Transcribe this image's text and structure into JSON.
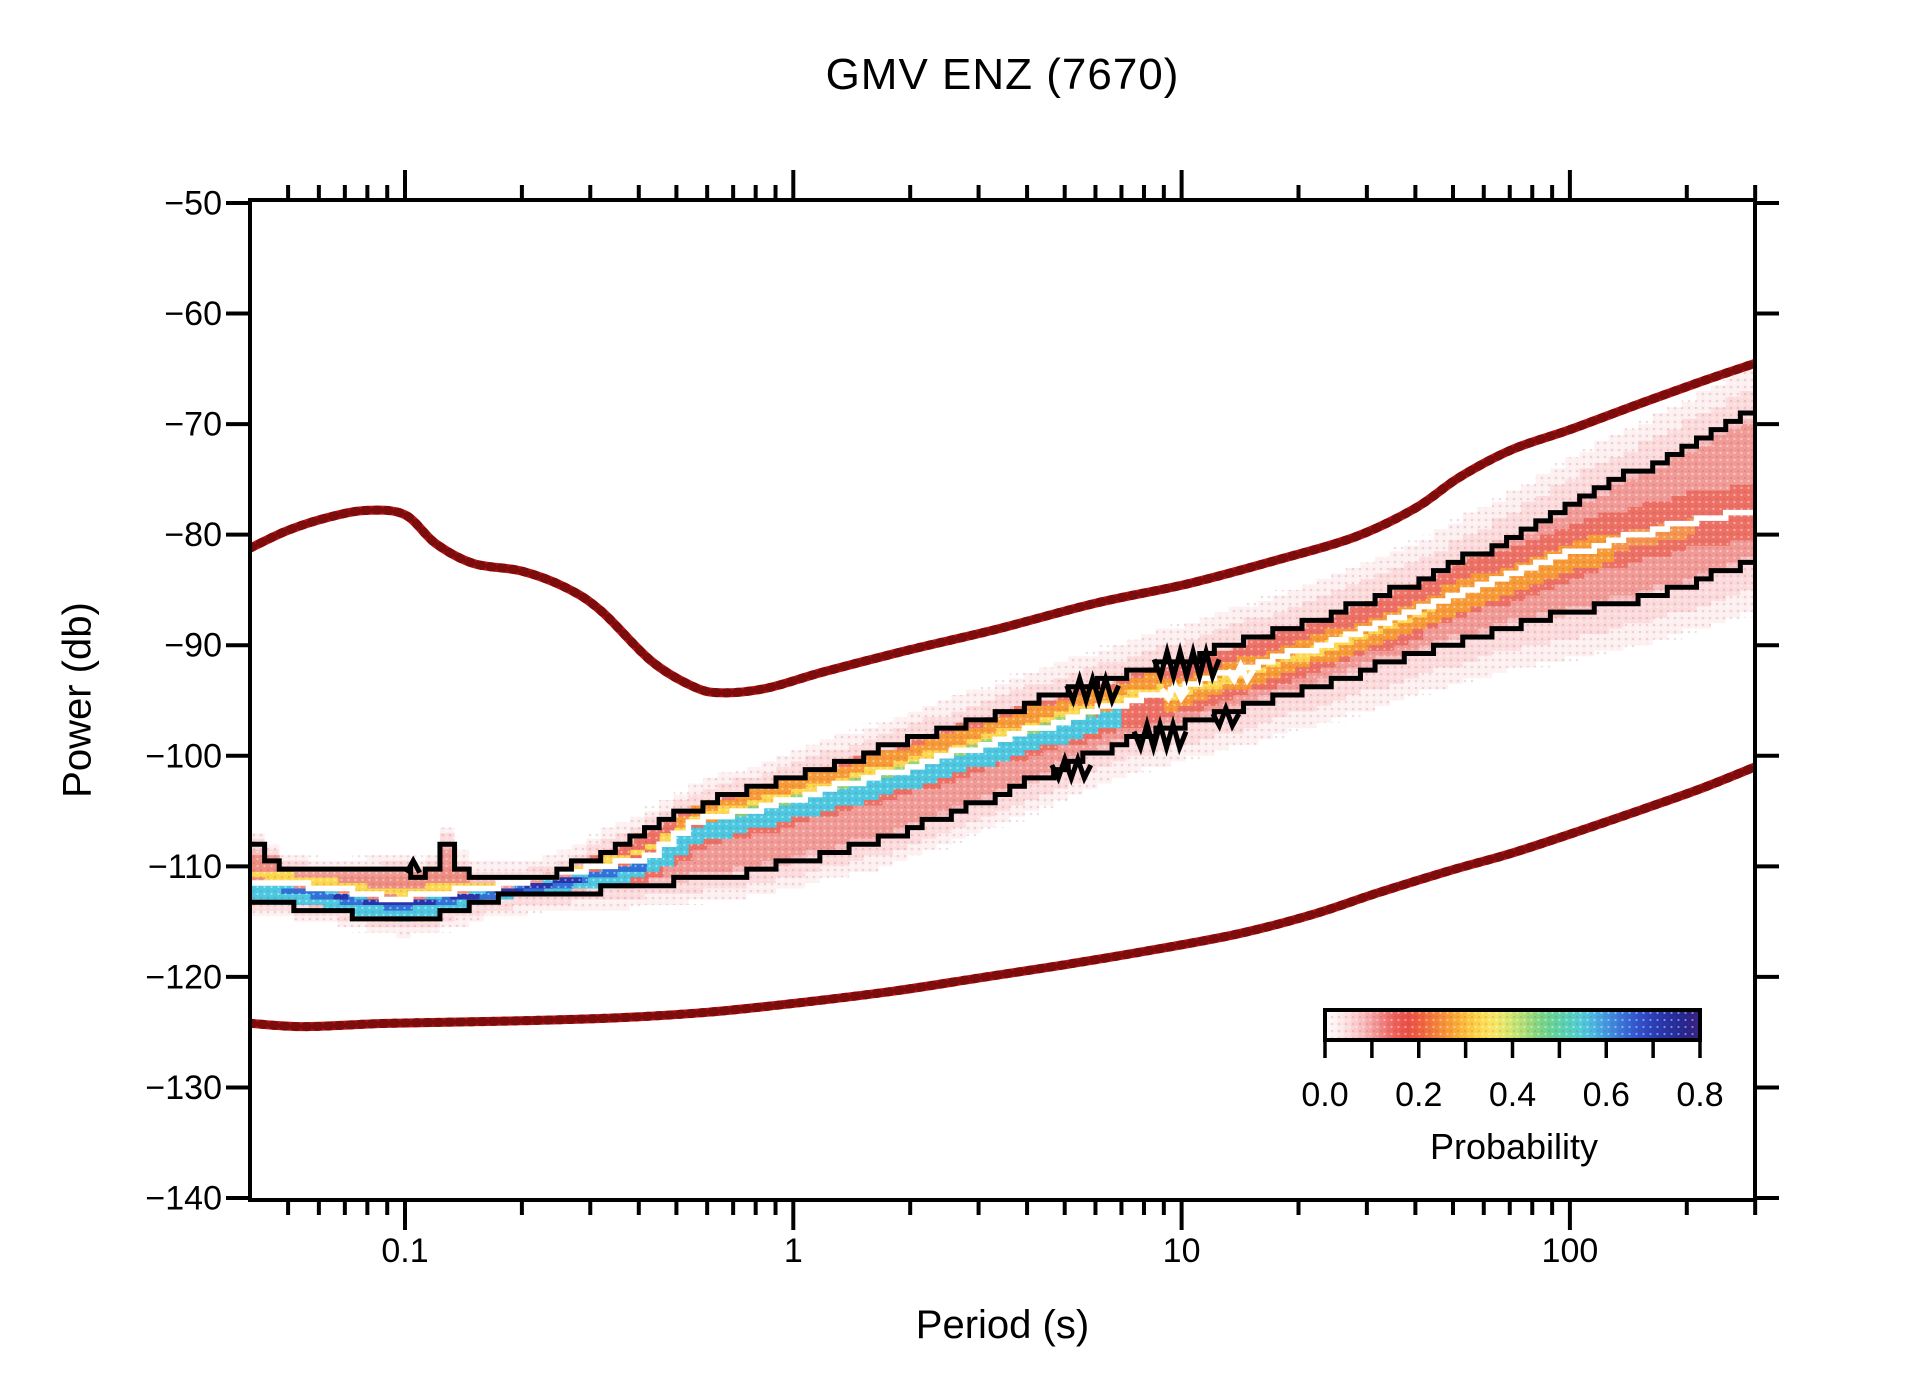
{
  "title": "GMV ENZ (7670)",
  "axes": {
    "x_label": "Period (s)",
    "y_label": "Power (db)",
    "x_tick_labels": [
      "0.1",
      "1",
      "10",
      "100"
    ],
    "y_tick_labels": [
      "−50",
      "−60",
      "−70",
      "−80",
      "−90",
      "−100",
      "−110",
      "−120",
      "−130",
      "−140"
    ]
  },
  "colorbar": {
    "label": "Probability",
    "tick_labels": [
      "0.0",
      "0.2",
      "0.4",
      "0.6",
      "0.8"
    ]
  },
  "chart_data": {
    "type": "heatmap",
    "title": "GMV ENZ (7670)",
    "xlabel": "Period (s)",
    "ylabel": "Power (db)",
    "x_scale": "log",
    "x_range": [
      0.04,
      300
    ],
    "x_major_ticks": [
      0.1,
      1,
      10,
      100
    ],
    "x_minor_ticks": [
      0.05,
      0.06,
      0.07,
      0.08,
      0.09,
      0.2,
      0.3,
      0.4,
      0.5,
      0.6,
      0.7,
      0.8,
      0.9,
      2,
      3,
      4,
      5,
      6,
      7,
      8,
      9,
      20,
      30,
      40,
      50,
      60,
      70,
      80,
      90,
      200,
      300
    ],
    "y_range": [
      -140,
      -50
    ],
    "y_ticks": [
      -50,
      -60,
      -70,
      -80,
      -90,
      -100,
      -110,
      -120,
      -130,
      -140
    ],
    "grid": false,
    "legend_position": "colorbar inside bottom-right",
    "colorbar": {
      "label": "Probability",
      "range": [
        0.0,
        0.8
      ],
      "ticks": [
        0.0,
        0.1,
        0.2,
        0.3,
        0.4,
        0.5,
        0.6,
        0.7,
        0.8
      ],
      "labeled_ticks": [
        0.0,
        0.2,
        0.4,
        0.6,
        0.8
      ]
    },
    "colormap_stops": [
      [
        0.0,
        "#ffffff"
      ],
      [
        0.03,
        "#fef0f0"
      ],
      [
        0.06,
        "#fcdede"
      ],
      [
        0.1,
        "#f8bcbc"
      ],
      [
        0.14,
        "#f39090"
      ],
      [
        0.18,
        "#ee6660"
      ],
      [
        0.22,
        "#ea4f46"
      ],
      [
        0.26,
        "#ef653e"
      ],
      [
        0.3,
        "#f5853a"
      ],
      [
        0.34,
        "#f9a335"
      ],
      [
        0.38,
        "#fcc23b"
      ],
      [
        0.42,
        "#fddc52"
      ],
      [
        0.45,
        "#f7e765"
      ],
      [
        0.48,
        "#dfe96c"
      ],
      [
        0.52,
        "#b7e274"
      ],
      [
        0.56,
        "#8ad87e"
      ],
      [
        0.6,
        "#68d392"
      ],
      [
        0.64,
        "#58d1b4"
      ],
      [
        0.68,
        "#52cdd3"
      ],
      [
        0.71,
        "#4bbbe0"
      ],
      [
        0.75,
        "#4197e0"
      ],
      [
        0.79,
        "#3875d9"
      ],
      [
        0.83,
        "#3056cf"
      ],
      [
        0.87,
        "#2a41bb"
      ],
      [
        0.91,
        "#2533a6"
      ],
      [
        0.95,
        "#232893"
      ],
      [
        0.98,
        "#2e2287"
      ],
      [
        1.0,
        "#3d2488"
      ]
    ],
    "series": {
      "high_noise_model": {
        "name": "high noise model",
        "color": "#bb1111",
        "points": [
          [
            0.04,
            -81.2
          ],
          [
            0.05,
            -79.6
          ],
          [
            0.064,
            -78.4
          ],
          [
            0.08,
            -77.8
          ],
          [
            0.1,
            -78.2
          ],
          [
            0.12,
            -80.8
          ],
          [
            0.15,
            -82.6
          ],
          [
            0.2,
            -83.3
          ],
          [
            0.26,
            -84.8
          ],
          [
            0.32,
            -86.9
          ],
          [
            0.43,
            -91.4
          ],
          [
            0.55,
            -93.7
          ],
          [
            0.65,
            -94.3
          ],
          [
            0.85,
            -93.9
          ],
          [
            1.2,
            -92.4
          ],
          [
            2,
            -90.4
          ],
          [
            3.3,
            -88.6
          ],
          [
            6,
            -86.2
          ],
          [
            10.5,
            -84.4
          ],
          [
            18,
            -82.2
          ],
          [
            28,
            -80.2
          ],
          [
            40,
            -77.6
          ],
          [
            52,
            -74.8
          ],
          [
            71,
            -72.3
          ],
          [
            100,
            -70.5
          ],
          [
            150,
            -68.2
          ],
          [
            220,
            -66.1
          ],
          [
            300,
            -64.5
          ]
        ]
      },
      "low_noise_model": {
        "name": "low noise model",
        "color": "#bb1111",
        "points": [
          [
            0.04,
            -124.2
          ],
          [
            0.055,
            -124.5
          ],
          [
            0.09,
            -124.2
          ],
          [
            0.18,
            -124.0
          ],
          [
            0.35,
            -123.7
          ],
          [
            0.6,
            -123.2
          ],
          [
            1,
            -122.4
          ],
          [
            1.8,
            -121.3
          ],
          [
            3,
            -120.1
          ],
          [
            5,
            -118.9
          ],
          [
            8,
            -117.7
          ],
          [
            14,
            -116.1
          ],
          [
            22,
            -114.3
          ],
          [
            32,
            -112.4
          ],
          [
            50,
            -110.3
          ],
          [
            71,
            -108.8
          ],
          [
            110,
            -106.6
          ],
          [
            158,
            -104.7
          ],
          [
            220,
            -102.9
          ],
          [
            300,
            -101.0
          ]
        ]
      },
      "max_envelope": {
        "name": "maximum envelope",
        "color": "#000000",
        "points": [
          [
            0.04,
            -107.8
          ],
          [
            0.05,
            -110.2
          ],
          [
            0.07,
            -110.6
          ],
          [
            0.1,
            -110.4
          ],
          [
            0.115,
            -110.9
          ],
          [
            0.13,
            -107.7
          ],
          [
            0.145,
            -111.2
          ],
          [
            0.21,
            -111.3
          ],
          [
            0.26,
            -110.3
          ],
          [
            0.32,
            -108.8
          ],
          [
            0.42,
            -106.9
          ],
          [
            0.58,
            -104.4
          ],
          [
            0.8,
            -103.0
          ],
          [
            1.1,
            -101.5
          ],
          [
            1.6,
            -99.7
          ],
          [
            2.4,
            -97.8
          ],
          [
            3.5,
            -96.0
          ],
          [
            5.2,
            -94.2
          ],
          [
            7.5,
            -92.6
          ],
          [
            10.5,
            -91.2
          ],
          [
            15,
            -89.6
          ],
          [
            22,
            -87.8
          ],
          [
            32,
            -85.8
          ],
          [
            45,
            -83.7
          ],
          [
            52,
            -82.5
          ],
          [
            70,
            -80.3
          ],
          [
            100,
            -77.2
          ],
          [
            140,
            -74.8
          ],
          [
            200,
            -72.2
          ],
          [
            300,
            -69.0
          ]
        ]
      },
      "mode": {
        "name": "mode",
        "color": "#ffffff",
        "points": [
          [
            0.04,
            -111.2
          ],
          [
            0.05,
            -111.5
          ],
          [
            0.065,
            -112.0
          ],
          [
            0.08,
            -112.6
          ],
          [
            0.1,
            -112.9
          ],
          [
            0.13,
            -112.3
          ],
          [
            0.17,
            -111.8
          ],
          [
            0.22,
            -111.2
          ],
          [
            0.3,
            -110.3
          ],
          [
            0.42,
            -109.1
          ],
          [
            0.58,
            -105.9
          ],
          [
            0.8,
            -104.8
          ],
          [
            1.1,
            -103.5
          ],
          [
            1.6,
            -102.0
          ],
          [
            2.4,
            -100.2
          ],
          [
            3.5,
            -98.4
          ],
          [
            5,
            -96.8
          ],
          [
            7,
            -95.3
          ],
          [
            10,
            -93.8
          ],
          [
            14,
            -92.3
          ],
          [
            20,
            -90.6
          ],
          [
            28,
            -88.9
          ],
          [
            40,
            -86.9
          ],
          [
            52,
            -85.2
          ],
          [
            75,
            -83.3
          ],
          [
            110,
            -81.3
          ],
          [
            160,
            -79.7
          ],
          [
            230,
            -78.5
          ],
          [
            300,
            -78.0
          ]
        ]
      },
      "min_envelope": {
        "name": "minimum envelope",
        "color": "#000000",
        "points": [
          [
            0.04,
            -113.4
          ],
          [
            0.06,
            -113.8
          ],
          [
            0.08,
            -114.6
          ],
          [
            0.1,
            -115.0
          ],
          [
            0.13,
            -114.2
          ],
          [
            0.17,
            -113.0
          ],
          [
            0.22,
            -112.5
          ],
          [
            0.3,
            -112.2
          ],
          [
            0.45,
            -111.6
          ],
          [
            0.6,
            -111.1
          ],
          [
            0.8,
            -110.4
          ],
          [
            1.1,
            -109.3
          ],
          [
            1.6,
            -107.8
          ],
          [
            2.3,
            -105.9
          ],
          [
            3.3,
            -103.8
          ],
          [
            4.7,
            -101.5
          ],
          [
            6,
            -99.9
          ],
          [
            8,
            -98.2
          ],
          [
            11,
            -96.9
          ],
          [
            15,
            -95.6
          ],
          [
            20,
            -94.2
          ],
          [
            28,
            -92.6
          ],
          [
            38,
            -91.0
          ],
          [
            52,
            -89.6
          ],
          [
            75,
            -88.0
          ],
          [
            117,
            -86.7
          ],
          [
            170,
            -85.2
          ],
          [
            230,
            -83.8
          ],
          [
            300,
            -82.5
          ]
        ]
      }
    },
    "density_stripes": [
      {
        "name": "halo-outer",
        "ref": "halo",
        "to": 1.8,
        "color": "#fceaea",
        "opacity": 0.7
      },
      {
        "name": "halo-inner",
        "ref": "halo",
        "to": 1.0,
        "color": "#fad7d7",
        "opacity": 0.85
      },
      {
        "name": "band-base",
        "ref": "envelope",
        "from": 0,
        "to": 0,
        "t_min": 0.04,
        "t_max": 300,
        "color": "#f6bdbd",
        "opacity": 1
      },
      {
        "name": "band-salmon",
        "ref": "envelope",
        "from": 0.5,
        "to": -0.5,
        "t_min": 0.04,
        "t_max": 300,
        "color": "#f19b97",
        "opacity": 1
      },
      {
        "name": "band-red-left",
        "ref": "mode",
        "from": -2.2,
        "to": 2.2,
        "t_min": 0.04,
        "t_max": 0.3,
        "color": "#ed8577",
        "opacity": 0.6
      },
      {
        "name": "band-red",
        "ref": "mode",
        "from": -2.4,
        "to": 2.6,
        "t_min": 0.3,
        "t_max": 300,
        "color": "#eb6a5a",
        "opacity": 0.85
      },
      {
        "name": "core-orange-a",
        "ref": "mode",
        "from": -0.15,
        "to": 1.9,
        "t_min": 0.5,
        "t_max": 9,
        "color": "#f79b36",
        "opacity": 1
      },
      {
        "name": "core-orange-b",
        "ref": "mode",
        "from": -1.7,
        "to": 0.9,
        "t_min": 9,
        "t_max": 130,
        "color": "#f79b36",
        "opacity": 1
      },
      {
        "name": "core-orange-c",
        "ref": "mode",
        "from": -1.2,
        "to": 0.3,
        "t_min": 130,
        "t_max": 210,
        "color": "#f7a04a",
        "opacity": 0.8
      },
      {
        "name": "core-yellow-a",
        "ref": "mode",
        "from": 0.05,
        "to": 0.8,
        "t_min": 0.04,
        "t_max": 9,
        "color": "#fcd84f",
        "opacity": 1
      },
      {
        "name": "core-yellow-b",
        "ref": "mode",
        "from": -0.85,
        "to": -0.05,
        "t_min": 9,
        "t_max": 45,
        "color": "#fcd84f",
        "opacity": 1
      },
      {
        "name": "stripe-green",
        "ref": "mode",
        "from": -0.9,
        "to": 0.15,
        "t_min": 0.7,
        "t_max": 6,
        "color": "#86d77e",
        "opacity": 0.9
      },
      {
        "name": "stripe-cyan",
        "ref": "mode",
        "from": -1.9,
        "to": -0.15,
        "t_min": 0.04,
        "t_max": 7,
        "color": "#4cc9e0",
        "opacity": 1
      },
      {
        "name": "stripe-blue",
        "ref": "mode",
        "from": -1.05,
        "to": -0.3,
        "t_min": 0.048,
        "t_max": 0.42,
        "color": "#2f72d9",
        "opacity": 1
      },
      {
        "name": "stripe-darkblue",
        "ref": "mode",
        "from": -0.8,
        "to": -0.38,
        "t_min": 0.06,
        "t_max": 0.3,
        "color": "#2734ad",
        "opacity": 1
      }
    ],
    "zigzags": [
      {
        "line": "max",
        "t": 0.105,
        "teeth": 1,
        "amp": 12,
        "dir": -1
      },
      {
        "line": "max",
        "t": 5.9,
        "teeth": 4,
        "amp": 15,
        "dir": 1
      },
      {
        "line": "max",
        "t": 10.3,
        "teeth": 5,
        "amp": 17,
        "dir": 1
      },
      {
        "line": "min",
        "t": 5.2,
        "teeth": 3,
        "amp": 13,
        "dir": 1
      },
      {
        "line": "min",
        "t": 8.8,
        "teeth": 4,
        "amp": 16,
        "dir": 1
      },
      {
        "line": "min",
        "t": 13,
        "teeth": 2,
        "amp": 12,
        "dir": 1
      },
      {
        "line": "mode",
        "t": 9.6,
        "teeth": 2,
        "amp": 9,
        "dir": 1
      },
      {
        "line": "mode",
        "t": 14.2,
        "teeth": 2,
        "amp": 10,
        "dir": 1
      }
    ]
  }
}
